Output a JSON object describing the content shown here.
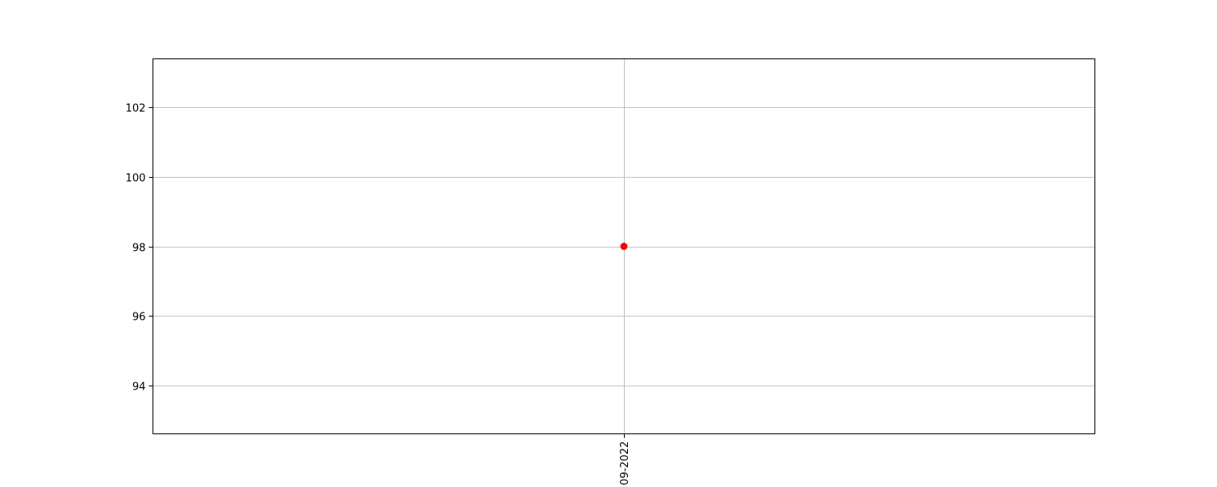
{
  "chart_data": {
    "type": "scatter",
    "title": "",
    "xlabel": "",
    "ylabel": "",
    "x_tick_labels": [
      "09-2022"
    ],
    "y_ticks": [
      94,
      96,
      98,
      100,
      102
    ],
    "ylim": [
      92.6,
      103.4
    ],
    "grid": true,
    "series": [
      {
        "x": [
          "09-2022"
        ],
        "y": [
          98
        ],
        "color": "#ff0000"
      }
    ]
  }
}
